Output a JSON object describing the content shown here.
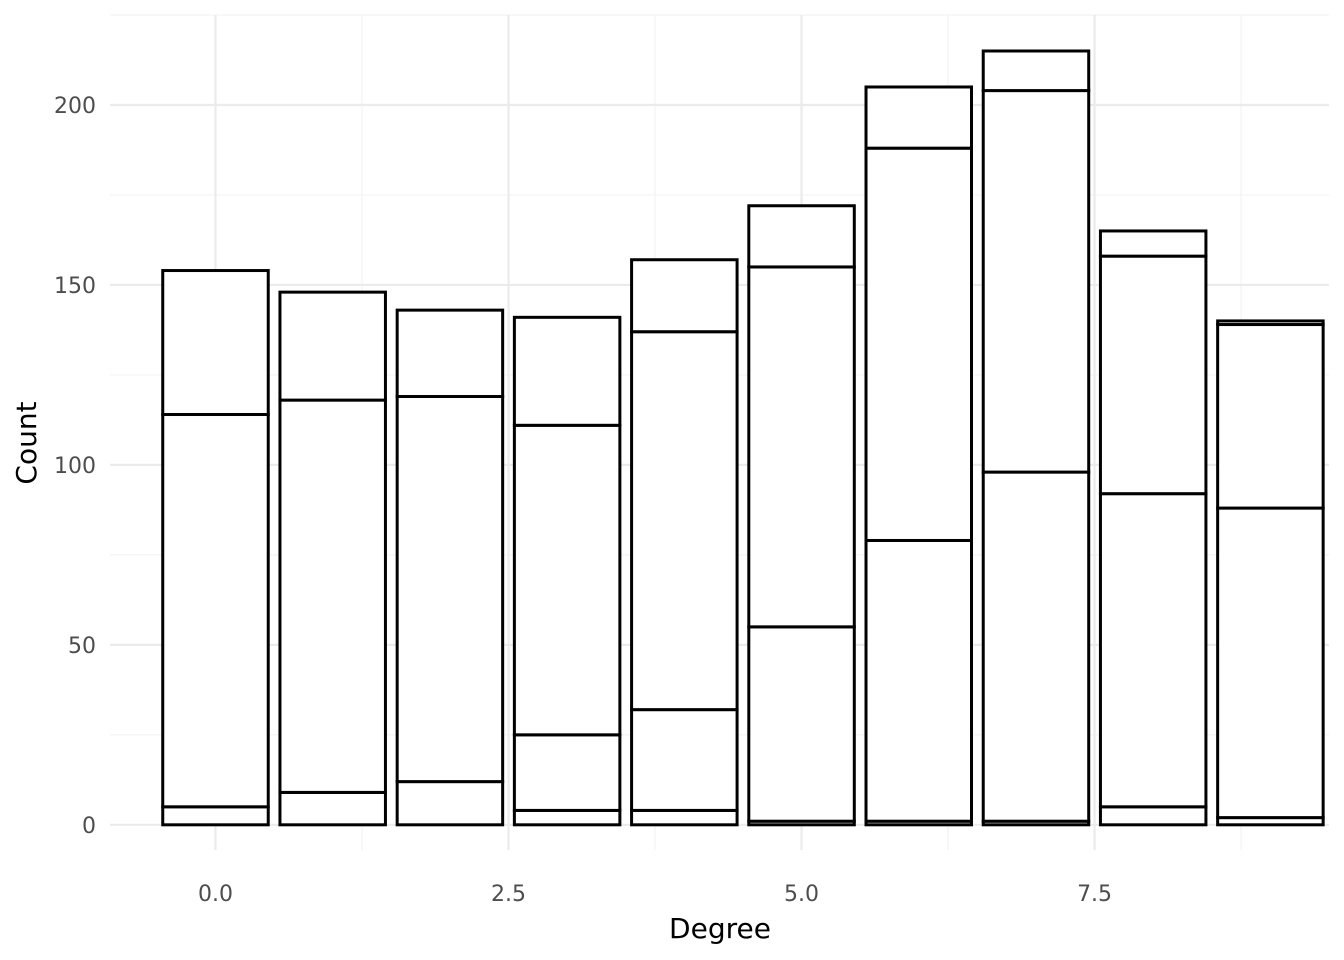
{
  "chart_data": {
    "type": "bar",
    "stacked": true,
    "xlabel": "Degree",
    "ylabel": "Count",
    "xlim": [
      -0.9,
      9.5
    ],
    "ylim": [
      -7,
      225
    ],
    "x_ticks": [
      0.0,
      2.5,
      5.0,
      7.5
    ],
    "x_tick_labels": [
      "0.0",
      "2.5",
      "5.0",
      "7.5"
    ],
    "y_ticks": [
      0,
      50,
      100,
      150,
      200
    ],
    "y_tick_labels": [
      "0",
      "50",
      "100",
      "150",
      "200"
    ],
    "grid": true,
    "legend": "none",
    "bar_width": 0.9,
    "x": [
      0,
      1,
      2,
      3,
      4,
      5,
      6,
      7,
      8,
      9
    ],
    "stacks": [
      [
        0,
        5,
        114,
        154
      ],
      [
        0,
        9,
        118,
        148
      ],
      [
        0,
        12,
        119,
        143
      ],
      [
        0,
        4,
        25,
        111,
        141
      ],
      [
        0,
        4,
        32,
        137,
        157
      ],
      [
        0,
        1,
        55,
        155,
        172
      ],
      [
        0,
        1,
        79,
        188,
        205
      ],
      [
        0,
        1,
        98,
        204,
        215
      ],
      [
        0,
        5,
        92,
        158,
        165
      ],
      [
        0,
        2,
        88,
        139,
        140
      ]
    ]
  }
}
